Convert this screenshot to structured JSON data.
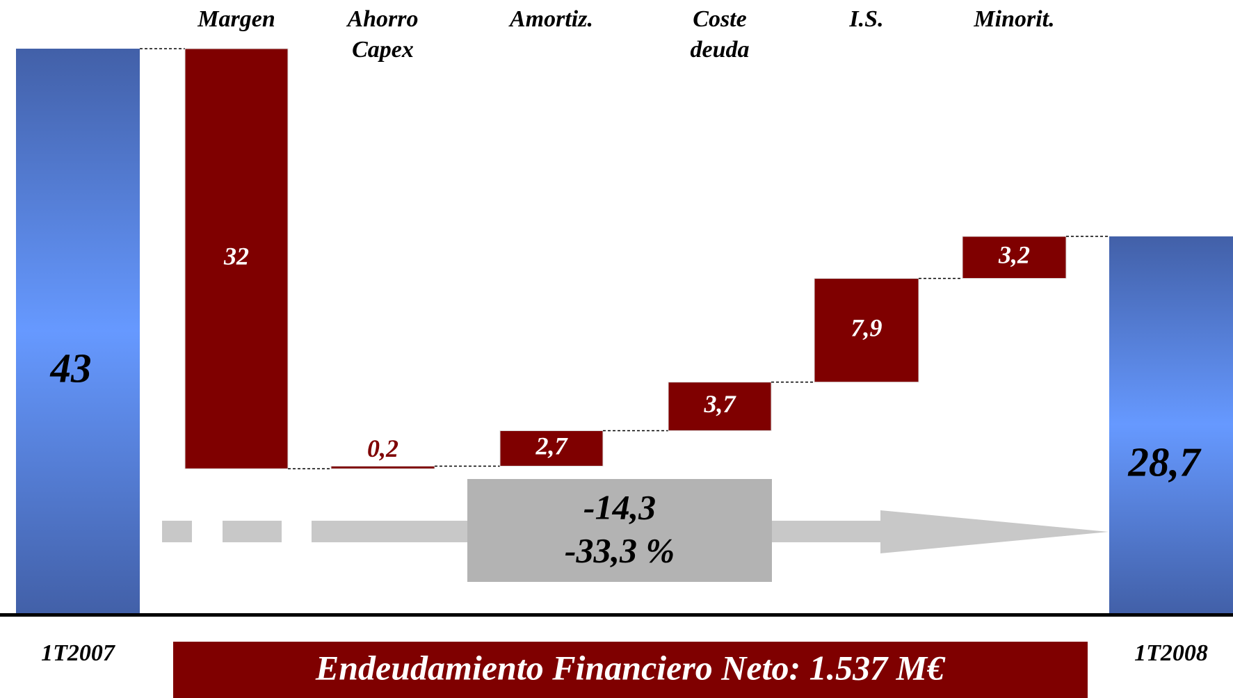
{
  "chart_data": {
    "type": "waterfall",
    "categories": [
      "1T2007",
      "Margen",
      "Ahorro Capex",
      "Amortiz.",
      "Coste deuda",
      "I.S.",
      "Minorit.",
      "1T2008"
    ],
    "values": [
      43,
      -32,
      0.2,
      2.7,
      3.7,
      7.9,
      3.2,
      28.7
    ],
    "value_labels": [
      "43",
      "32",
      "0,2",
      "2,7",
      "3,7",
      "7,9",
      "3,2",
      "28,7"
    ],
    "measure": [
      "absolute",
      "relative",
      "relative",
      "relative",
      "relative",
      "relative",
      "relative",
      "total"
    ],
    "total_color": "#6699ff",
    "delta_color": "#7f0000",
    "annotations": [
      "-14,3",
      "-33,3 %"
    ],
    "note": "Endeudamiento Financiero Neto: 1.537 M€"
  }
}
